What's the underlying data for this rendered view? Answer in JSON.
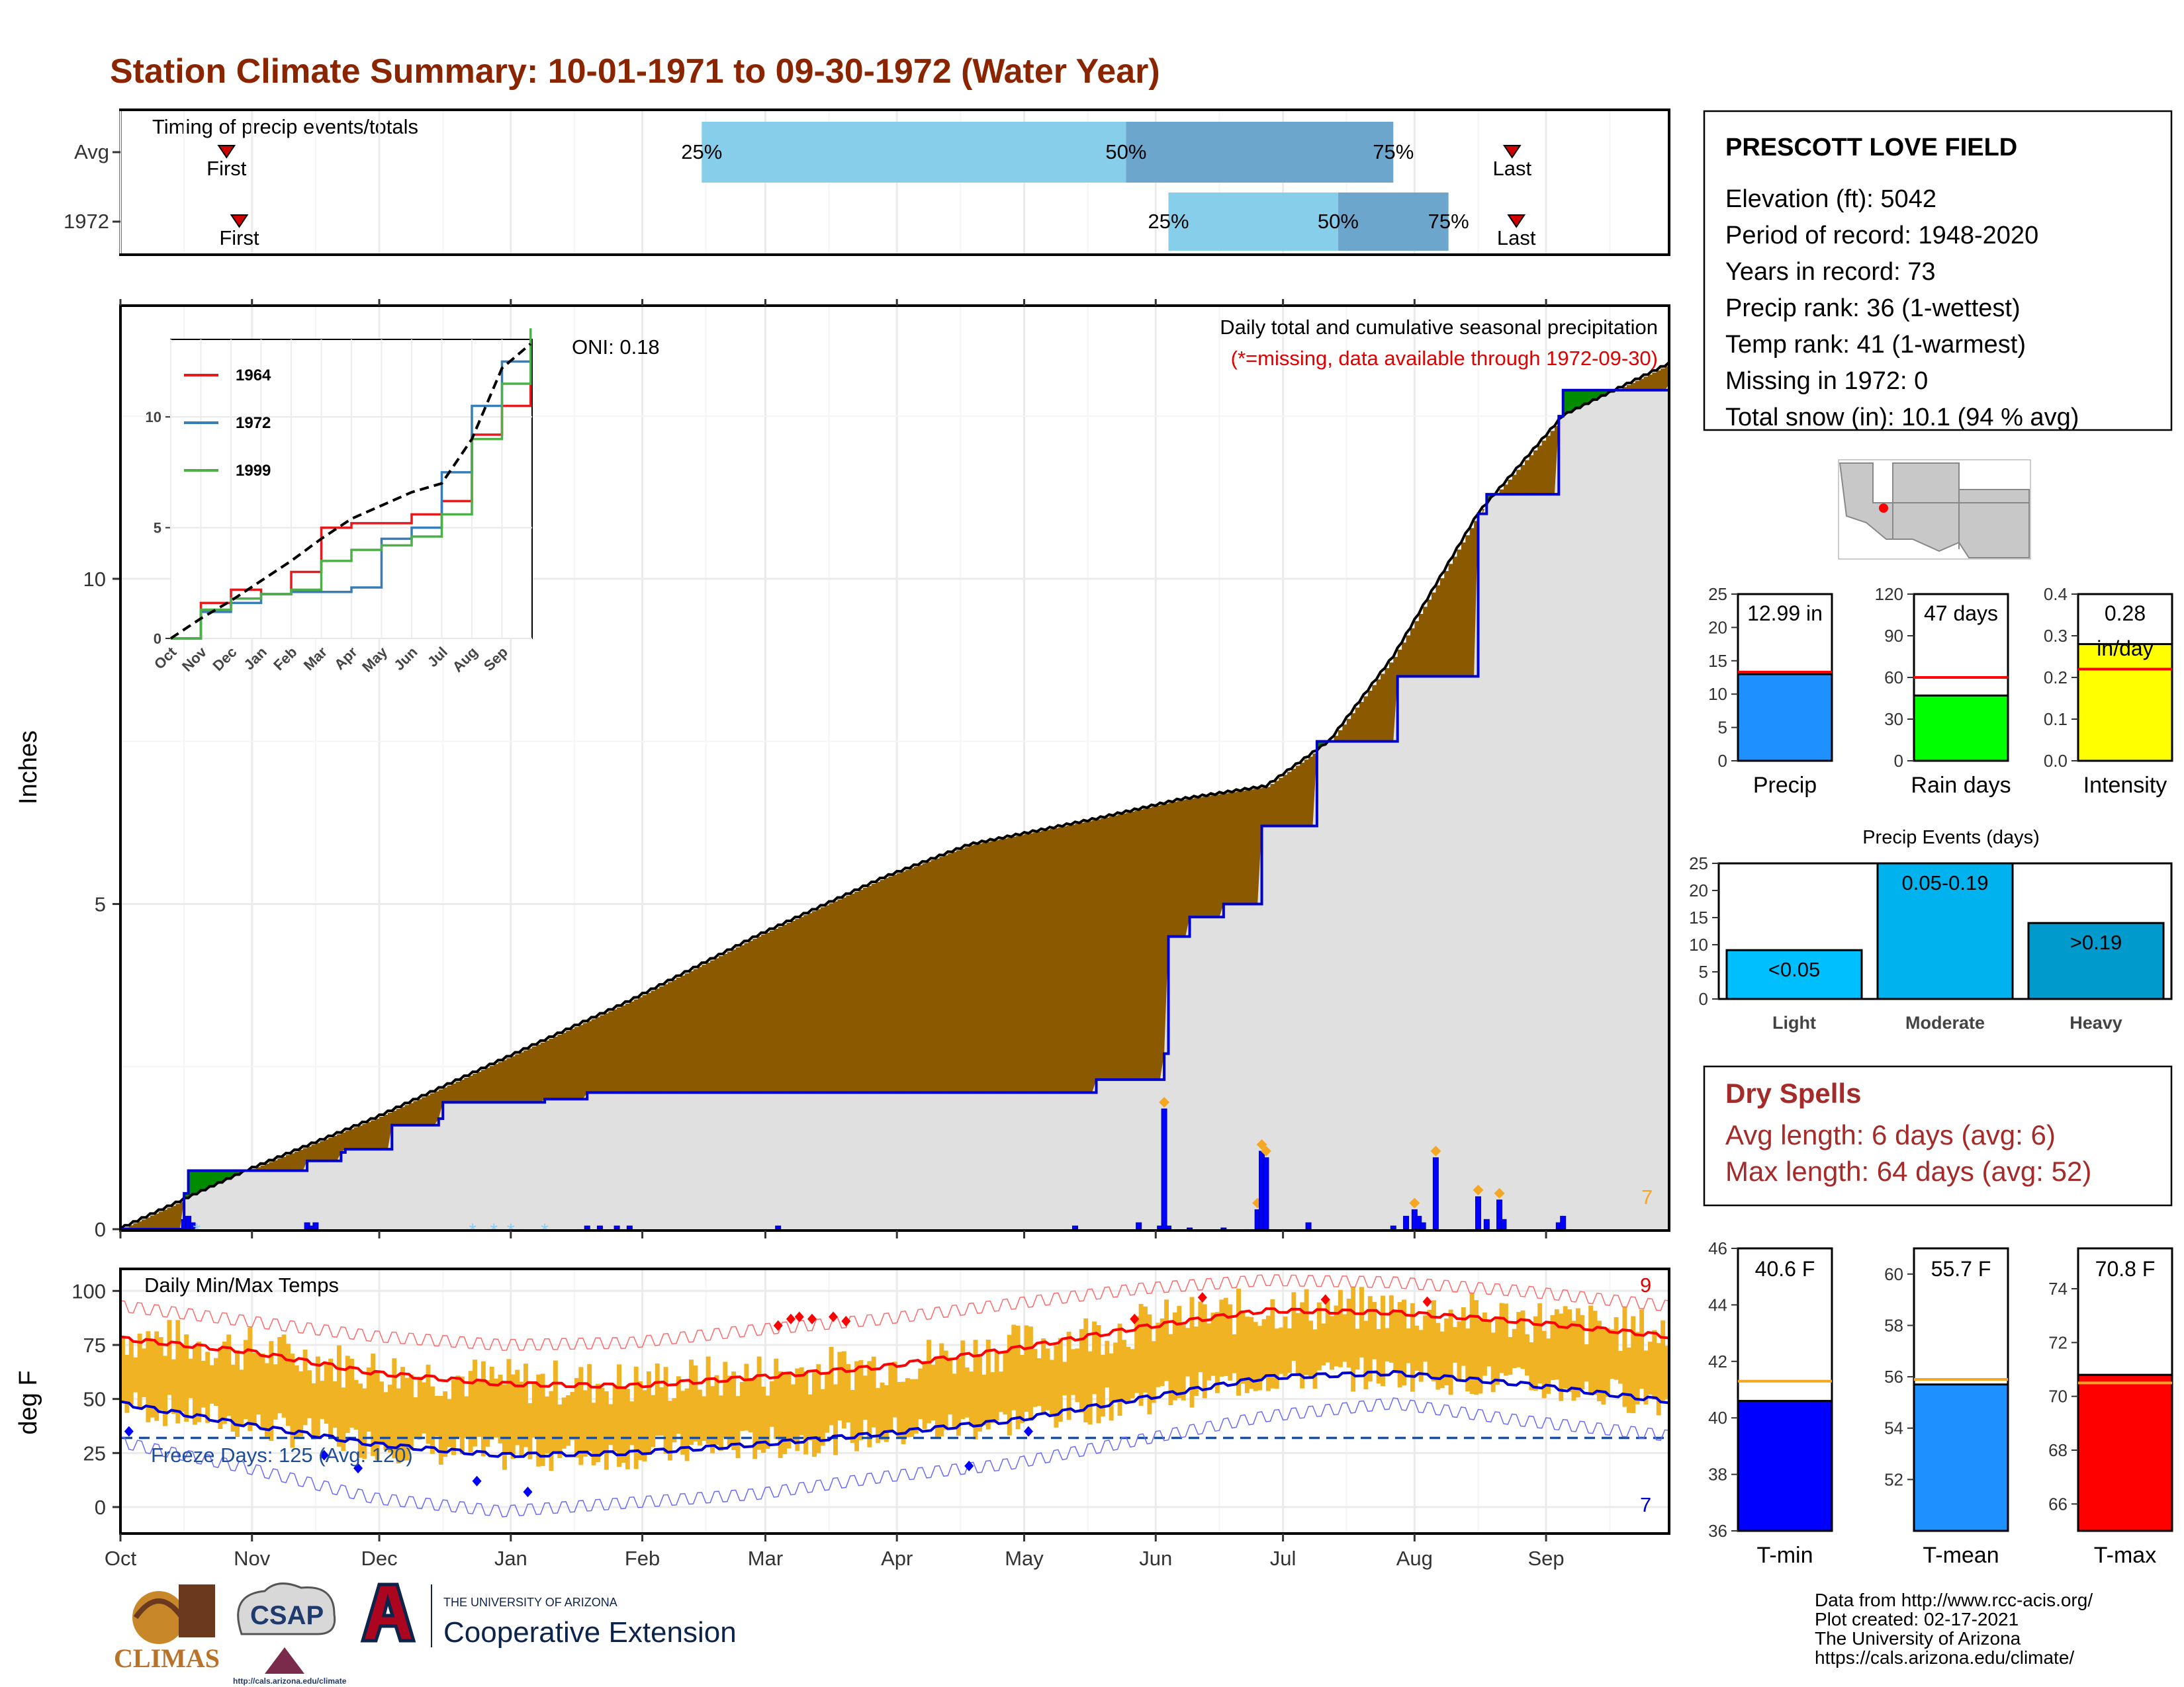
{
  "page": {
    "title": "Station Climate Summary: 10-01-1971 to 09-30-1972 (Water Year)",
    "title_color": "#8B2500"
  },
  "timing_panel": {
    "label": "Timing of precip events/totals",
    "rows": [
      {
        "name": "Avg",
        "first_day": 25,
        "q25": 137,
        "q50": 237,
        "q75": 300,
        "last_day": 328,
        "labels": {
          "first": "First",
          "q25": "25%",
          "q50": "50%",
          "q75": "75%",
          "last": "Last"
        }
      },
      {
        "name": "1972",
        "first_day": 28,
        "q25": 247,
        "q50": 287,
        "q75": 313,
        "last_day": 329,
        "labels": {
          "first": "First",
          "q25": "25%",
          "q50": "50%",
          "q75": "75%",
          "last": "Last"
        }
      }
    ],
    "colors": {
      "light": "#87CEEB",
      "dark": "#6CA6CD",
      "marker": "#D00000"
    }
  },
  "station_box": {
    "name": "PRESCOTT LOVE FIELD",
    "lines": [
      "Elevation (ft): 5042",
      "Period of record: 1948-2020",
      "Years in record: 73",
      "Precip rank: 36 (1-wettest)",
      "Temp rank: 41 (1-warmest)",
      "Missing in 1972: 0",
      "Total snow (in): 10.1 (94 % avg)"
    ]
  },
  "precip_panel": {
    "ylabel": "Inches",
    "title_line1": "Daily total and cumulative seasonal precipitation",
    "title_line2": "(*=missing, data available through 1972-09-30)",
    "oni": "ONI: 0.18",
    "count_label": "7",
    "colors": {
      "deficit": "#8B5A00",
      "surplus": "#008B00",
      "area": "#E0E0E0",
      "line": "#0000CD",
      "bars": "#0000FF",
      "snow": "#87CEFA",
      "diamond": "#F5A623"
    }
  },
  "inset": {
    "legend": [
      {
        "name": "1964",
        "color": "#E41A1C"
      },
      {
        "name": "1972",
        "color": "#377EB8"
      },
      {
        "name": "1999",
        "color": "#4DAF4A"
      }
    ],
    "months": [
      "Oct",
      "Nov",
      "Dec",
      "Jan",
      "Feb",
      "Mar",
      "Apr",
      "May",
      "Jun",
      "Jul",
      "Aug",
      "Sep"
    ],
    "yticks": [
      "0",
      "5",
      "10"
    ]
  },
  "temp_panel": {
    "ylabel": "deg F",
    "label": "Daily Min/Max Temps",
    "freeze": "Freeze Days: 125 (Avg: 120)",
    "count_hi": "9",
    "count_lo": "7",
    "freeze_line": 32,
    "colors": {
      "bars": "#F0B323",
      "mean_max": "#FF0000",
      "mean_min": "#0000CD",
      "hi": "#FF6A6A",
      "lo": "#6A6AFF",
      "freeze": "#1F4E99"
    }
  },
  "month_labels": [
    "Oct",
    "Nov",
    "Dec",
    "Jan",
    "Feb",
    "Mar",
    "Apr",
    "May",
    "Jun",
    "Jul",
    "Aug",
    "Sep"
  ],
  "summary_bars": [
    {
      "label": "Precip",
      "value_text": "12.99 in",
      "value": 12.99,
      "avg": 13.3,
      "ymax": 25,
      "ticks": [
        0,
        5,
        10,
        15,
        20,
        25
      ],
      "color": "#1E90FF"
    },
    {
      "label": "Rain days",
      "value_text": "47 days",
      "value": 47,
      "avg": 60,
      "ymax": 120,
      "ticks": [
        0,
        30,
        60,
        90,
        120
      ],
      "color": "#00FF00"
    },
    {
      "label": "Intensity",
      "value_text": "0.28\nin/day",
      "value": 0.28,
      "avg": 0.22,
      "ymax": 0.4,
      "ticks": [
        0.0,
        0.1,
        0.2,
        0.3,
        0.4
      ],
      "color": "#FFFF00"
    }
  ],
  "precip_events": {
    "title": "Precip Events (days)",
    "categories": [
      "Light",
      "Moderate",
      "Heavy"
    ],
    "range_labels": [
      "<0.05",
      "0.05-0.19",
      ">0.19"
    ],
    "values": [
      9,
      25,
      14
    ],
    "ticks": [
      0,
      5,
      10,
      15,
      20,
      25
    ],
    "colors": [
      "#00BFFF",
      "#00B2EE",
      "#009ACD"
    ]
  },
  "dry_spells": {
    "title": "Dry Spells",
    "lines": [
      "Avg length: 6 days (avg: 6)",
      "Max length: 64 days (avg: 52)"
    ],
    "color": "#A52A2A"
  },
  "temp_bars": [
    {
      "label": "T-min",
      "value_text": "40.6 F",
      "value": 40.6,
      "avg": 41.3,
      "ymin": 36,
      "ymax": 46,
      "ticks": [
        36,
        38,
        40,
        42,
        44,
        46
      ],
      "color": "#0000FF"
    },
    {
      "label": "T-mean",
      "value_text": "55.7 F",
      "value": 55.7,
      "avg": 55.9,
      "ymin": 50,
      "ymax": 61,
      "ticks": [
        52,
        54,
        56,
        58,
        60
      ],
      "color": "#1E90FF"
    },
    {
      "label": "T-max",
      "value_text": "70.8 F",
      "value": 70.8,
      "avg": 70.5,
      "ymin": 65,
      "ymax": 75.5,
      "ticks": [
        66,
        68,
        70,
        72,
        74
      ],
      "color": "#FF0000"
    }
  ],
  "footer": {
    "lines": [
      "Data from http://www.rcc-acis.org/",
      "Plot created: 02-17-2021",
      "The University of Arizona",
      "https://cals.arizona.edu/climate/"
    ],
    "logo1": "CLIMAS",
    "logo2": "CSAP",
    "logo2_url": "http://cals.arizona.edu/climate",
    "logo3_small": "THE UNIVERSITY OF ARIZONA",
    "logo3": "Cooperative Extension"
  },
  "chart_data": [
    {
      "type": "area",
      "title": "Daily total and cumulative seasonal precipitation",
      "xlabel": "",
      "ylabel": "Inches",
      "ylim": [
        0,
        14.2
      ],
      "x_unit": "day of water year (Oct 1 = 0)",
      "series": [
        {
          "name": "cumulative 1972",
          "x": [
            0,
            15,
            16,
            44,
            45,
            52,
            53,
            63,
            64,
            75,
            76,
            100,
            110,
            180,
            183,
            230,
            245,
            246,
            247,
            248,
            252,
            255,
            260,
            268,
            269,
            280,
            282,
            285,
            286,
            300,
            301,
            320,
            322,
            330,
            339,
            340,
            365
          ],
          "values": [
            0,
            0.55,
            0.9,
            1.05,
            1.05,
            1.18,
            1.23,
            1.23,
            1.6,
            1.7,
            1.95,
            2.0,
            2.1,
            2.1,
            2.1,
            2.3,
            2.3,
            2.7,
            4.5,
            4.5,
            4.8,
            4.8,
            5.0,
            5.0,
            6.2,
            6.2,
            7.5,
            7.5,
            7.5,
            7.5,
            8.5,
            11.0,
            11.3,
            11.3,
            12.5,
            12.9,
            12.99
          ]
        },
        {
          "name": "average cumulative",
          "x": [
            0,
            30,
            60,
            90,
            120,
            150,
            180,
            200,
            230,
            250,
            270,
            285,
            300,
            320,
            340,
            365
          ],
          "values": [
            0,
            0.9,
            1.7,
            2.6,
            3.5,
            4.5,
            5.4,
            5.9,
            6.3,
            6.6,
            6.8,
            7.5,
            8.8,
            11.0,
            12.5,
            13.3
          ]
        }
      ],
      "daily_bars": {
        "x": [
          15,
          16,
          17,
          44,
          45,
          46,
          110,
          113,
          117,
          120,
          155,
          225,
          240,
          245,
          246,
          247,
          252,
          260,
          268,
          269,
          270,
          280,
          300,
          303,
          305,
          306,
          307,
          310,
          320,
          322,
          325,
          326,
          339,
          340
        ],
        "values": [
          0.15,
          0.2,
          0.1,
          0.1,
          0.05,
          0.1,
          0.05,
          0.05,
          0.05,
          0.05,
          0.05,
          0.05,
          0.1,
          0.05,
          1.85,
          0.05,
          0.02,
          0.02,
          0.3,
          1.2,
          1.1,
          0.1,
          0.05,
          0.2,
          0.3,
          0.2,
          0.1,
          1.1,
          0.5,
          0.15,
          0.45,
          0.15,
          0.1,
          0.2
        ]
      }
    },
    {
      "type": "line",
      "title": "",
      "xlabel": "",
      "ylabel": "",
      "ylim": [
        0,
        13.5
      ],
      "series": [
        {
          "name": "1964",
          "x": [
            0,
            1,
            2,
            3,
            4,
            5,
            6,
            7,
            8,
            9,
            10,
            11,
            12
          ],
          "values": [
            0,
            1.6,
            2.2,
            2.0,
            3.0,
            5.0,
            5.2,
            5.2,
            5.6,
            6.2,
            9.2,
            10.5,
            12.8
          ]
        },
        {
          "name": "1972",
          "x": [
            0,
            1,
            2,
            3,
            4,
            5,
            6,
            7,
            8,
            9,
            10,
            11,
            12
          ],
          "values": [
            0,
            1.2,
            1.6,
            2.0,
            2.1,
            2.1,
            2.3,
            4.5,
            5.0,
            7.5,
            10.5,
            12.5,
            13.0
          ]
        },
        {
          "name": "1999",
          "x": [
            0,
            1,
            2,
            3,
            4,
            5,
            6,
            7,
            8,
            9,
            10,
            11,
            12
          ],
          "values": [
            0,
            1.3,
            1.8,
            2.0,
            2.2,
            3.5,
            4.0,
            4.2,
            4.6,
            5.6,
            9.0,
            11.5,
            14.0
          ]
        },
        {
          "name": "average",
          "x": [
            0,
            1,
            2,
            3,
            4,
            5,
            6,
            7,
            8,
            9,
            10,
            11,
            12
          ],
          "values": [
            0,
            0.9,
            1.7,
            2.6,
            3.5,
            4.5,
            5.4,
            6.0,
            6.6,
            7.0,
            9.0,
            12.2,
            13.3
          ]
        }
      ]
    },
    {
      "type": "bar",
      "title": "Daily Min/Max Temps",
      "ylabel": "deg F",
      "ylim": [
        -10,
        110
      ],
      "series": [
        {
          "name": "avg max",
          "x": [
            0,
            30,
            60,
            90,
            120,
            150,
            180,
            210,
            240,
            270,
            300,
            330,
            365
          ],
          "values": [
            78,
            72,
            62,
            57,
            56,
            60,
            65,
            73,
            83,
            91,
            90,
            86,
            79
          ]
        },
        {
          "name": "avg min",
          "x": [
            0,
            30,
            60,
            90,
            120,
            150,
            180,
            210,
            240,
            270,
            300,
            330,
            365
          ],
          "values": [
            48,
            38,
            29,
            24,
            25,
            29,
            34,
            40,
            50,
            60,
            62,
            57,
            49
          ]
        },
        {
          "name": "record high",
          "x": [
            0,
            30,
            60,
            90,
            120,
            150,
            180,
            210,
            240,
            270,
            300,
            330,
            365
          ],
          "values": [
            93,
            86,
            79,
            75,
            76,
            82,
            87,
            94,
            101,
            105,
            104,
            100,
            93
          ]
        },
        {
          "name": "record low",
          "x": [
            0,
            30,
            60,
            90,
            120,
            150,
            180,
            210,
            240,
            270,
            300,
            330,
            365
          ],
          "values": [
            30,
            18,
            4,
            -2,
            2,
            6,
            14,
            20,
            31,
            42,
            48,
            40,
            33
          ]
        }
      ]
    },
    {
      "type": "bar",
      "title": "",
      "categories": [
        "Precip",
        "Rain days",
        "Intensity"
      ],
      "values": [
        12.99,
        47,
        0.28
      ],
      "avg": [
        13.3,
        60,
        0.22
      ]
    },
    {
      "type": "bar",
      "title": "Precip Events (days)",
      "categories": [
        "Light",
        "Moderate",
        "Heavy"
      ],
      "values": [
        9,
        25,
        14
      ],
      "ylim": [
        0,
        25
      ]
    },
    {
      "type": "bar",
      "title": "",
      "categories": [
        "T-min",
        "T-mean",
        "T-max"
      ],
      "values": [
        40.6,
        55.7,
        70.8
      ],
      "avg": [
        41.3,
        55.9,
        70.5
      ]
    }
  ]
}
